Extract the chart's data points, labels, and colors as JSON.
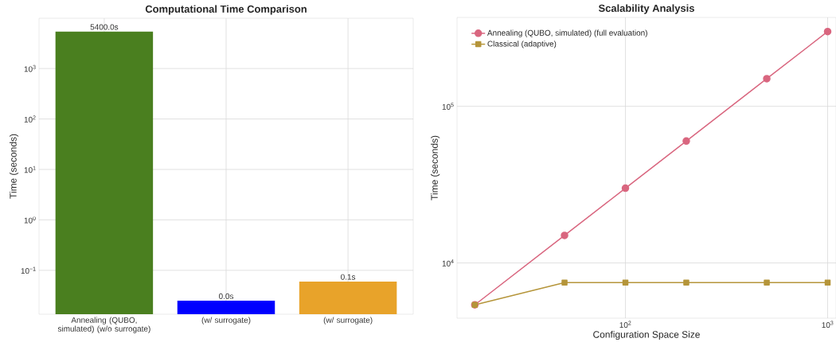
{
  "chart_data": [
    {
      "type": "bar",
      "title": "Computational Time Comparison",
      "ylabel": "Time (seconds)",
      "categories": [
        "Annealing (QUBO, simulated) (w/o surrogate)",
        "(w/ surrogate)",
        "(w/ surrogate)"
      ],
      "values": [
        5400,
        0.025,
        0.06
      ],
      "colors": [
        "#4a7f1f",
        "#0000ff",
        "#e8a32a"
      ],
      "value_labels": [
        "5400.0s",
        "0.0s",
        "0.1s"
      ],
      "log": true,
      "ylim": [
        0.0135,
        9900
      ],
      "yticks": [
        {
          "value": 0.1,
          "label": "10$^{−1}$"
        },
        {
          "value": 1,
          "label": "10$^{0}$"
        },
        {
          "value": 10,
          "label": "10$^{1}$"
        },
        {
          "value": 100,
          "label": "10$^{2}$"
        },
        {
          "value": 1000,
          "label": "10$^{3}$"
        }
      ],
      "grid": true
    },
    {
      "type": "line",
      "title": "Scalability Analysis",
      "xlabel": "Configuration Space Size",
      "ylabel": "Time (seconds)",
      "x": [
        18,
        50,
        100,
        200,
        500,
        1000
      ],
      "series": [
        {
          "name": "Annealing (QUBO, simulated) (full evaluation)",
          "color": "#d9667f",
          "marker": "circle",
          "values": [
            5400,
            15000,
            30000,
            60000,
            150000,
            300000
          ]
        },
        {
          "name": "Classical (adaptive)",
          "color": "#b5953a",
          "marker": "square",
          "values": [
            5400,
            7500,
            7500,
            7500,
            7500,
            7500
          ]
        }
      ],
      "log": "xy",
      "xlim": [
        14.7,
        1100
      ],
      "ylim": [
        4440,
        369000
      ],
      "xticks": [
        {
          "value": 100,
          "label": "10$^{2}$"
        },
        {
          "value": 1000,
          "label": "10$^{3}$"
        }
      ],
      "yticks": [
        {
          "value": 10000,
          "label": "10$^{4}$"
        },
        {
          "value": 100000,
          "label": "10$^{5}$"
        }
      ],
      "grid": true,
      "legend": "top left",
      "line_style": "solid"
    }
  ]
}
